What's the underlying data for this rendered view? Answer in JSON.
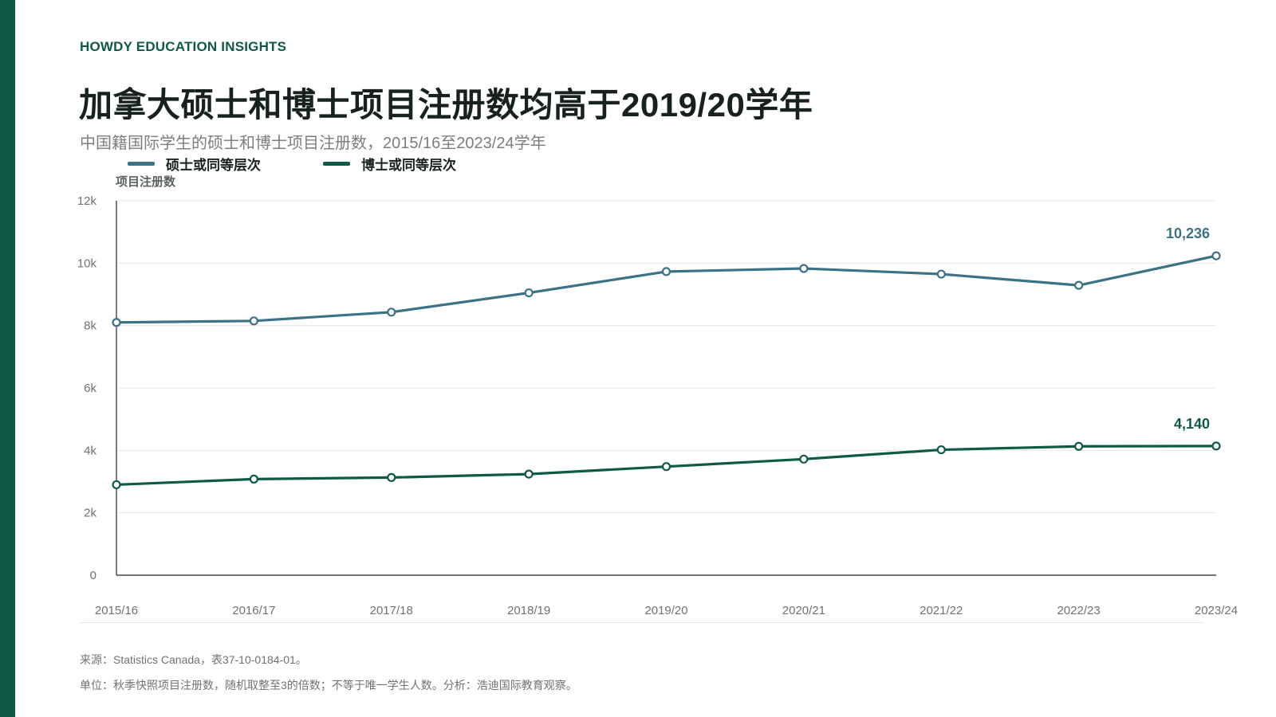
{
  "brand": "HOWDY EDUCATION INSIGHTS",
  "title": "加拿大硕士和博士项目注册数均高于2019/20学年",
  "subtitle": "中国籍国际学生的硕士和博士项目注册数，2015/16至2023/24学年",
  "footer": {
    "source": "来源：Statistics Canada，表37-10-0184-01。",
    "note": "单位：秋季快照项目注册数，随机取整至3的倍数；不等于唯一学生人数。分析：浩迪国际教育观察。"
  },
  "colors": {
    "accent": "#0f5a47",
    "masters": "#3b7285",
    "doctoral": "#0f5a47",
    "grid": "#e6e8e7"
  },
  "chart_data": {
    "type": "line",
    "title": "加拿大硕士和博士项目注册数均高于2019/20学年",
    "subtitle": "中国籍国际学生的硕士和博士项目注册数，2015/16至2023/24学年",
    "xlabel": "",
    "ylabel": "项目注册数",
    "categories": [
      "2015/16",
      "2016/17",
      "2017/18",
      "2018/19",
      "2019/20",
      "2020/21",
      "2021/22",
      "2022/23",
      "2023/24"
    ],
    "ylim": [
      0,
      12000
    ],
    "yticks": [
      0,
      2000,
      4000,
      6000,
      8000,
      10000,
      12000
    ],
    "ytick_labels": [
      "0",
      "2k",
      "4k",
      "6k",
      "8k",
      "10k",
      "12k"
    ],
    "grid": true,
    "legend_position": "top-left",
    "series": [
      {
        "name": "硕士或同等层次",
        "color": "#3b7285",
        "values": [
          8100,
          8150,
          8430,
          9050,
          9730,
          9830,
          9650,
          9290,
          10236
        ],
        "end_label": "10,236"
      },
      {
        "name": "博士或同等层次",
        "color": "#0f5a47",
        "values": [
          2900,
          3080,
          3130,
          3240,
          3480,
          3720,
          4020,
          4130,
          4140
        ],
        "end_label": "4,140"
      }
    ]
  }
}
